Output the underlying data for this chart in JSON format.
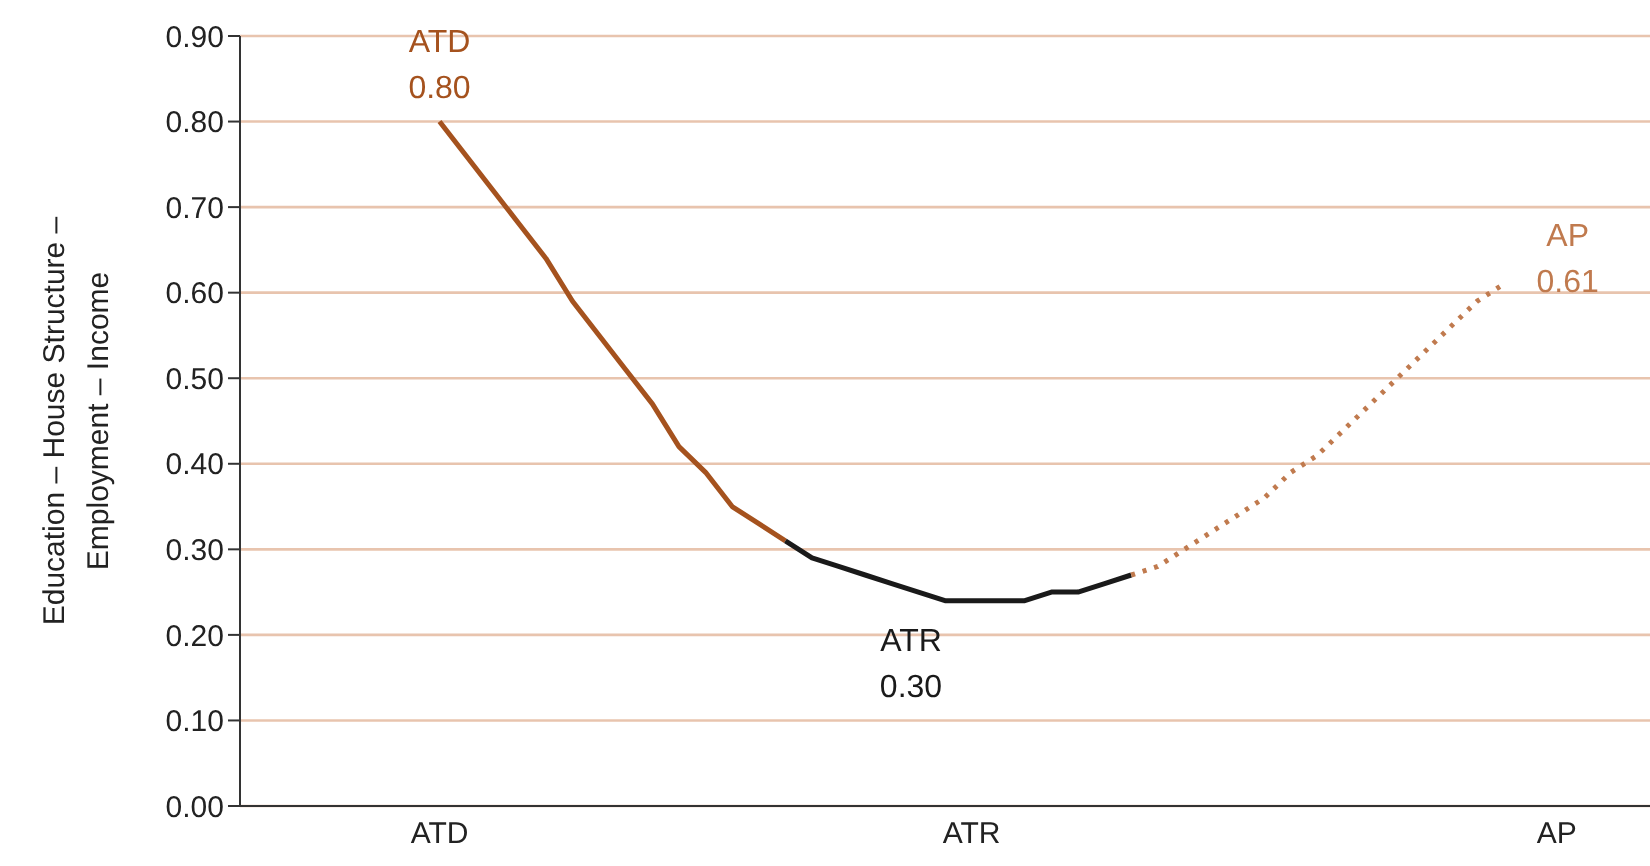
{
  "chart_data": {
    "type": "line",
    "ylabel": "Education – House Structure –\nEmployment – Income",
    "categories": [
      null,
      null,
      null,
      null,
      null,
      null,
      null,
      "ATD",
      null,
      null,
      null,
      null,
      null,
      null,
      null,
      null,
      null,
      null,
      null,
      null,
      null,
      null,
      null,
      null,
      null,
      null,
      null,
      "ATR",
      null,
      null,
      null,
      null,
      null,
      null,
      null,
      null,
      null,
      null,
      null,
      null,
      null,
      null,
      null,
      null,
      null,
      null,
      null,
      null,
      null,
      "AP",
      null,
      null,
      null
    ],
    "ylim": [
      0,
      0.9
    ],
    "yticks": [
      {
        "value": 0,
        "label": "0.00"
      },
      {
        "value": 0.1,
        "label": "0.10"
      },
      {
        "value": 0.2,
        "label": "0.20"
      },
      {
        "value": 0.3,
        "label": "0.30"
      },
      {
        "value": 0.4,
        "label": "0.40"
      },
      {
        "value": 0.5,
        "label": "0.50"
      },
      {
        "value": 0.6,
        "label": "0.60"
      },
      {
        "value": 0.7,
        "label": "0.70"
      },
      {
        "value": 0.8,
        "label": "0.80"
      },
      {
        "value": 0.9,
        "label": "0.90"
      }
    ],
    "grid": "y",
    "marker": "none",
    "series": [
      {
        "color": "#a5521e",
        "line_style": "solid",
        "values": [
          null,
          null,
          null,
          null,
          null,
          null,
          null,
          0.8,
          0.76,
          0.72,
          0.68,
          0.64,
          0.59,
          0.55,
          0.51,
          0.47,
          0.42,
          0.39,
          0.35,
          0.33,
          0.31,
          null,
          null,
          null,
          null,
          null,
          null,
          null,
          null,
          null,
          null,
          null,
          null,
          null,
          null,
          null,
          null,
          null,
          null,
          null,
          null,
          null,
          null,
          null,
          null,
          null,
          null,
          null,
          null,
          null,
          null,
          null,
          null
        ]
      },
      {
        "color": "#1a1a1a",
        "line_style": "solid",
        "values": [
          null,
          null,
          null,
          null,
          null,
          null,
          null,
          null,
          null,
          null,
          null,
          null,
          null,
          null,
          null,
          null,
          null,
          null,
          null,
          null,
          0.31,
          0.29,
          0.28,
          0.27,
          0.26,
          0.25,
          0.24,
          0.24,
          0.24,
          0.24,
          0.25,
          0.25,
          0.26,
          0.27,
          null,
          null,
          null,
          null,
          null,
          null,
          null,
          null,
          null,
          null,
          null,
          null,
          null,
          null,
          null,
          null,
          null,
          null,
          null
        ]
      },
      {
        "color": "#c07a4e",
        "line_style": "dotted",
        "values": [
          null,
          null,
          null,
          null,
          null,
          null,
          null,
          null,
          null,
          null,
          null,
          null,
          null,
          null,
          null,
          null,
          null,
          null,
          null,
          null,
          null,
          null,
          null,
          null,
          null,
          null,
          null,
          null,
          null,
          null,
          null,
          null,
          null,
          0.27,
          0.28,
          0.3,
          0.32,
          0.34,
          0.36,
          0.39,
          0.41,
          0.44,
          0.47,
          0.5,
          0.53,
          0.56,
          0.59,
          0.61,
          null,
          null,
          null,
          null,
          null
        ]
      }
    ],
    "annotations": [
      "ATD\n0.80",
      "ATR\n0.30",
      "AP\n0.61"
    ]
  }
}
